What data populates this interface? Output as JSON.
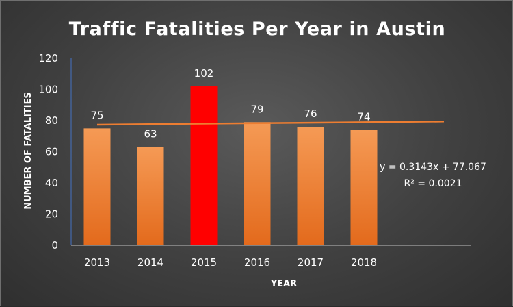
{
  "chart_data": {
    "type": "bar",
    "title": "Traffic Fatalities Per Year in Austin",
    "xlabel": "YEAR",
    "ylabel": "NUMBER OF FATALITIES",
    "categories": [
      "2013",
      "2014",
      "2015",
      "2016",
      "2017",
      "2018"
    ],
    "values": [
      75,
      63,
      102,
      79,
      76,
      74
    ],
    "data_labels": [
      "75",
      "63",
      "102",
      "79",
      "76",
      "74"
    ],
    "y_ticks": [
      "0",
      "20",
      "40",
      "60",
      "80",
      "100",
      "120"
    ],
    "ylim": [
      0,
      120
    ],
    "grid": false,
    "legend": "none",
    "highlight": {
      "category": "2015",
      "color": "#ff0000"
    },
    "bar_color": "#f08c3c",
    "trendline": {
      "type": "linear",
      "slope": 0.3143,
      "intercept": 77.067,
      "equation": "y = 0.3143x + 77.067",
      "r_squared_label": "R² = 0.0021",
      "color": "#ed7d31"
    }
  }
}
